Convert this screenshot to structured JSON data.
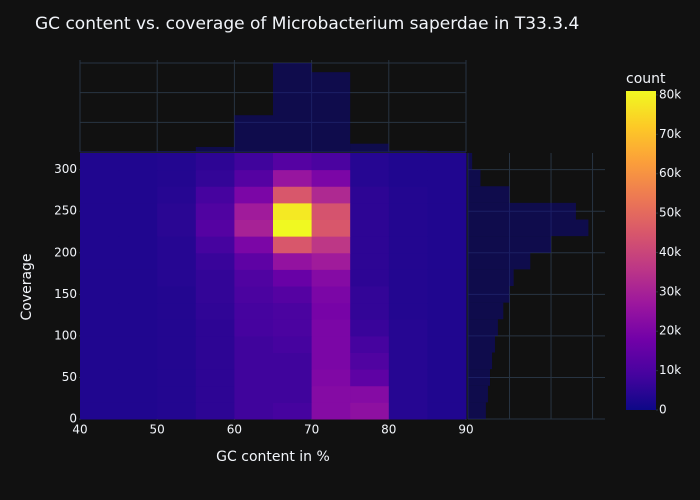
{
  "chart_data": {
    "type": "density_heatmap",
    "title": "GC content vs. coverage of Microbacterium saperdae in T33.3.4",
    "xlabel": "GC content in %",
    "ylabel": "Coverage",
    "x_bins": [
      40,
      45,
      50,
      55,
      60,
      65,
      70,
      75,
      80,
      85,
      90
    ],
    "y_bins": [
      0,
      20,
      40,
      60,
      80,
      100,
      120,
      140,
      160,
      180,
      200,
      220,
      240,
      260,
      280,
      300,
      320
    ],
    "z": [
      [
        3000,
        3000,
        3500,
        5000,
        8000,
        9000,
        22000,
        24000,
        4000,
        3000
      ],
      [
        3000,
        3000,
        3500,
        5000,
        8000,
        8000,
        22000,
        22000,
        4000,
        3000
      ],
      [
        3000,
        3000,
        3500,
        5000,
        8000,
        8000,
        21000,
        14000,
        4000,
        3000
      ],
      [
        3000,
        3000,
        3500,
        5000,
        8000,
        8000,
        20000,
        11000,
        4000,
        3000
      ],
      [
        3000,
        3000,
        3500,
        5000,
        8000,
        9000,
        20000,
        9000,
        4000,
        3000
      ],
      [
        3000,
        3000,
        3500,
        5000,
        9000,
        10000,
        20000,
        7000,
        4000,
        3000
      ],
      [
        3000,
        3000,
        3500,
        5500,
        9000,
        10000,
        19000,
        6000,
        3500,
        3000
      ],
      [
        3000,
        3000,
        3500,
        6000,
        10000,
        12000,
        20000,
        6000,
        3500,
        3000
      ],
      [
        3000,
        3000,
        4000,
        6000,
        11000,
        16000,
        22000,
        5000,
        3500,
        3000
      ],
      [
        3000,
        3000,
        4000,
        7000,
        14000,
        25000,
        28000,
        5000,
        3500,
        3000
      ],
      [
        3000,
        3000,
        4000,
        9000,
        20000,
        45000,
        36000,
        5000,
        3500,
        3000
      ],
      [
        3000,
        3000,
        4500,
        12000,
        30000,
        81000,
        45000,
        5000,
        3500,
        3000
      ],
      [
        3000,
        3000,
        4500,
        11000,
        28000,
        78000,
        44000,
        5000,
        3500,
        3000
      ],
      [
        3000,
        3000,
        4000,
        9000,
        20000,
        45000,
        32000,
        5000,
        3500,
        3000
      ],
      [
        3000,
        3000,
        3500,
        6000,
        12000,
        26000,
        20000,
        4000,
        3000,
        3000
      ],
      [
        3000,
        3000,
        3500,
        5000,
        8000,
        12000,
        10000,
        4000,
        3000,
        3000
      ]
    ],
    "xlim": [
      40,
      90
    ],
    "ylim": [
      0,
      320
    ],
    "xticks": [
      40,
      50,
      60,
      70,
      80,
      90
    ],
    "yticks": [
      0,
      50,
      100,
      150,
      200,
      250,
      300
    ],
    "colorscale": [
      "#0d0887",
      "#46039f",
      "#7201a8",
      "#9c179e",
      "#bd3786",
      "#d8576b",
      "#ed7953",
      "#fb9f3a",
      "#fdca26",
      "#f0f921"
    ],
    "colorbar": {
      "title": "count",
      "lim": [
        0,
        81000
      ],
      "ticks": [
        0,
        {
          "value": 10000,
          "label": "10k"
        },
        {
          "value": 20000,
          "label": "20k"
        },
        {
          "value": 30000,
          "label": "30k"
        },
        {
          "value": 40000,
          "label": "40k"
        },
        {
          "value": 50000,
          "label": "50k"
        },
        {
          "value": 60000,
          "label": "60k"
        },
        {
          "value": 70000,
          "label": "70k"
        },
        {
          "value": 80000,
          "label": "80k"
        }
      ]
    },
    "marginal_x": {
      "type": "histogram",
      "values": [
        0.02,
        0.02,
        0.03,
        0.17,
        1.24,
        3.0,
        2.69,
        0.28,
        0.05,
        0.03
      ],
      "ylim": [
        0,
        3.1
      ],
      "yticks": [
        0,
        1,
        2,
        3
      ],
      "color": "#0d0887"
    },
    "marginal_y": {
      "type": "histogram",
      "values": [
        0.43,
        0.48,
        0.53,
        0.58,
        0.65,
        0.72,
        0.85,
        1.0,
        1.1,
        1.5,
        2.0,
        2.9,
        2.6,
        1.0,
        0.3,
        0.1
      ],
      "xlim": [
        0,
        3.3
      ],
      "xticks": [
        0,
        1,
        2,
        3
      ],
      "color": "#0d0887"
    }
  }
}
